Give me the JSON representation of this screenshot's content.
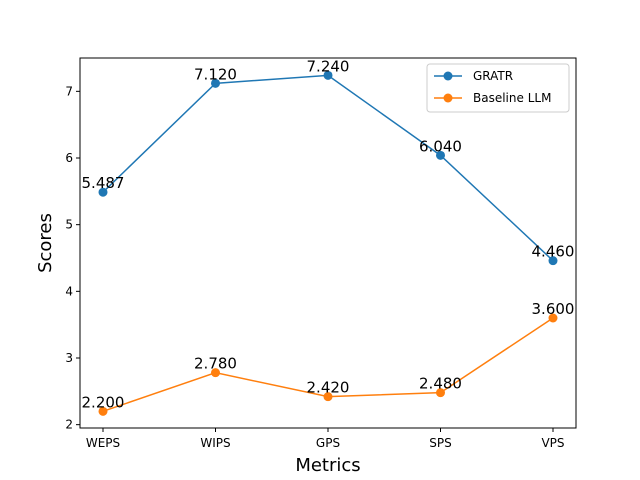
{
  "chart_data": {
    "type": "line",
    "categories": [
      "WEPS",
      "WIPS",
      "GPS",
      "SPS",
      "VPS"
    ],
    "series": [
      {
        "name": "GRATR",
        "color": "#1f77b4",
        "values": [
          5.487,
          7.12,
          7.24,
          6.04,
          4.46
        ],
        "labels": [
          "5.487",
          "7.120",
          "7.240",
          "6.040",
          "4.460"
        ]
      },
      {
        "name": "Baseline LLM",
        "color": "#ff7f0e",
        "values": [
          2.2,
          2.78,
          2.42,
          2.48,
          3.6
        ],
        "labels": [
          "2.200",
          "2.780",
          "2.420",
          "2.480",
          "3.600"
        ]
      }
    ],
    "xlabel": "Metrics",
    "ylabel": "Scores",
    "ylim": [
      1.95,
      7.5
    ],
    "yticks": [
      "2",
      "3",
      "4",
      "5",
      "6",
      "7"
    ],
    "grid": false,
    "legend": "upper right"
  }
}
